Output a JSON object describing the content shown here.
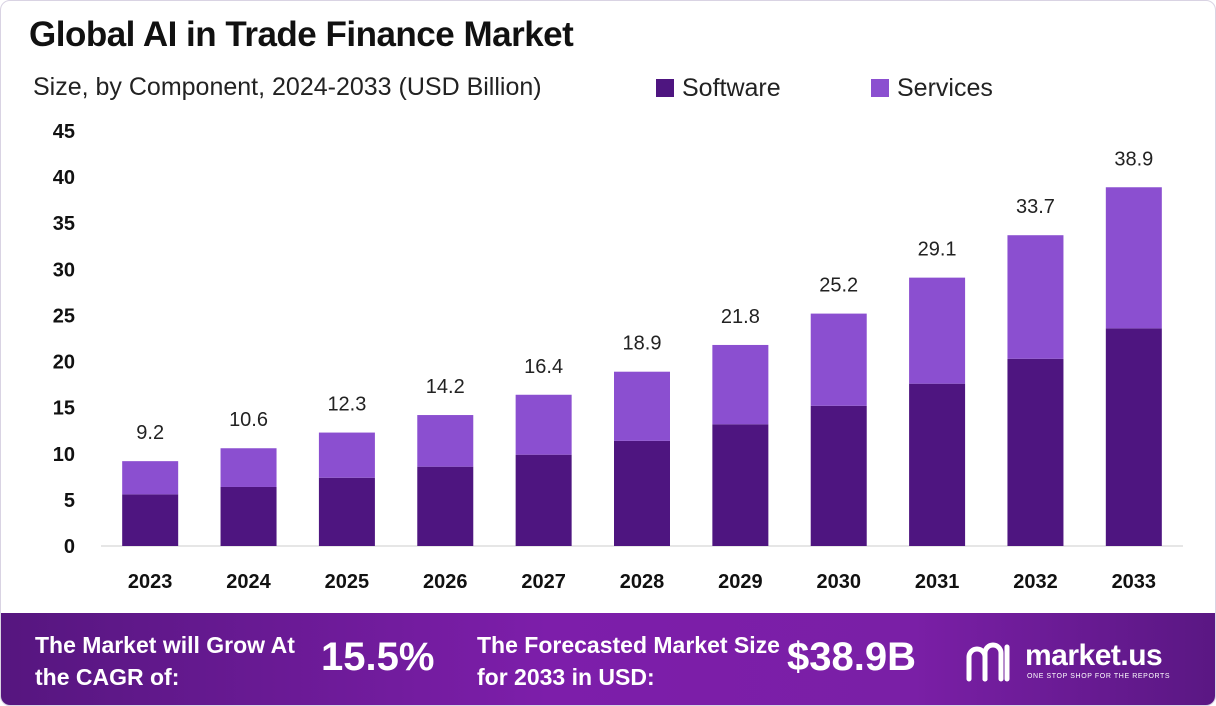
{
  "colors": {
    "software": "#4e1580",
    "services": "#8b4fd0",
    "axis": "#cccccc",
    "footer_start": "#56167f",
    "footer_end": "#7d1eaa"
  },
  "chart_data": {
    "type": "bar",
    "stacked": true,
    "title": "Global AI in Trade Finance Market",
    "subtitle": "Size, by Component, 2024-2033 (USD Billion)",
    "categories": [
      "2023",
      "2024",
      "2025",
      "2026",
      "2027",
      "2028",
      "2029",
      "2030",
      "2031",
      "2032",
      "2033"
    ],
    "series": [
      {
        "name": "Software",
        "values": [
          5.6,
          6.4,
          7.4,
          8.6,
          9.9,
          11.4,
          13.2,
          15.2,
          17.6,
          20.3,
          23.6
        ]
      },
      {
        "name": "Services",
        "values": [
          3.6,
          4.2,
          4.9,
          5.6,
          6.5,
          7.5,
          8.6,
          10.0,
          11.5,
          13.4,
          15.3
        ]
      }
    ],
    "totals": [
      "9.2",
      "10.6",
      "12.3",
      "14.2",
      "16.4",
      "18.9",
      "21.8",
      "25.2",
      "29.1",
      "33.7",
      "38.9"
    ],
    "yticks": [
      "0",
      "5",
      "10",
      "15",
      "20",
      "25",
      "30",
      "35",
      "40",
      "45"
    ],
    "ylim": [
      0,
      45
    ],
    "legend_position": "top-right",
    "grid": false
  },
  "footer": {
    "cagr_text": "The Market will Grow At the CAGR of:",
    "cagr_value": "15.5%",
    "size_text": "The Forecasted Market Size for 2033 in USD:",
    "size_value": "$38.9B",
    "brand_name": "market.us",
    "brand_tagline": "ONE STOP SHOP FOR THE REPORTS"
  }
}
